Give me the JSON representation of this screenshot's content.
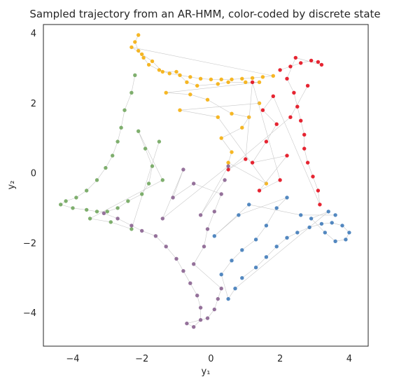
{
  "chart_data": {
    "type": "scatter",
    "title": "Sampled trajectory from an AR-HMM, color-coded by discrete state",
    "xlabel": "y₁",
    "ylabel": "y₂",
    "xlim": [
      -4.85,
      4.55
    ],
    "ylim": [
      -4.95,
      4.25
    ],
    "xticks": [
      -4,
      -2,
      0,
      2,
      4
    ],
    "yticks": [
      -4,
      -2,
      0,
      2,
      4
    ],
    "xtick_labels": [
      "−4",
      "−2",
      "0",
      "2",
      "4"
    ],
    "ytick_labels": [
      "−4",
      "−2",
      "0",
      "2",
      "4"
    ],
    "grid": false,
    "legend": "none",
    "trajectory_line_color": "#bbbbbb",
    "series": [
      {
        "color": "#f6ac00",
        "points": [
          [
            -2.1,
            3.95
          ],
          [
            -2.2,
            3.75
          ],
          [
            -2.1,
            3.5
          ],
          [
            -1.95,
            3.3
          ],
          [
            -1.8,
            3.1
          ],
          [
            -1.5,
            2.95
          ],
          [
            -1.2,
            2.85
          ],
          [
            -0.9,
            2.8
          ],
          [
            -0.6,
            2.75
          ],
          [
            -0.3,
            2.7
          ],
          [
            0,
            2.68
          ],
          [
            0.3,
            2.68
          ],
          [
            0.6,
            2.68
          ],
          [
            0.9,
            2.7
          ],
          [
            1.2,
            2.72
          ],
          [
            1.5,
            2.75
          ],
          [
            1.8,
            2.78
          ],
          [
            -2.3,
            3.6
          ],
          [
            -2.0,
            3.4
          ],
          [
            -1.7,
            3.2
          ],
          [
            -1.4,
            2.9
          ],
          [
            -1.0,
            2.9
          ],
          [
            -0.7,
            2.6
          ],
          [
            -0.4,
            2.5
          ],
          [
            0.2,
            2.55
          ],
          [
            0.5,
            2.6
          ],
          [
            1.0,
            2.6
          ],
          [
            1.4,
            2.6
          ],
          [
            -1.3,
            2.3
          ],
          [
            -0.6,
            2.25
          ],
          [
            -0.1,
            2.1
          ],
          [
            0.6,
            1.7
          ],
          [
            1.1,
            1.6
          ],
          [
            0.9,
            1.3
          ],
          [
            0.3,
            1.0
          ],
          [
            0.6,
            0.6
          ],
          [
            0.5,
            0.3
          ],
          [
            1.6,
            -0.3
          ],
          [
            0.2,
            1.6
          ],
          [
            -0.9,
            1.8
          ],
          [
            1.4,
            2.0
          ]
        ]
      },
      {
        "color": "#e3000f",
        "points": [
          [
            2.0,
            2.95
          ],
          [
            2.3,
            3.05
          ],
          [
            2.6,
            3.15
          ],
          [
            2.9,
            3.22
          ],
          [
            3.1,
            3.18
          ],
          [
            3.2,
            3.1
          ],
          [
            2.45,
            3.3
          ],
          [
            2.2,
            2.7
          ],
          [
            2.4,
            2.3
          ],
          [
            2.5,
            1.9
          ],
          [
            2.6,
            1.5
          ],
          [
            2.7,
            1.1
          ],
          [
            2.7,
            0.7
          ],
          [
            2.8,
            0.3
          ],
          [
            2.95,
            -0.1
          ],
          [
            3.1,
            -0.5
          ],
          [
            3.15,
            -0.9
          ],
          [
            1.8,
            2.2
          ],
          [
            1.5,
            1.8
          ],
          [
            1.9,
            1.4
          ],
          [
            1.6,
            0.9
          ],
          [
            1.2,
            0.3
          ],
          [
            2.2,
            0.5
          ],
          [
            1.4,
            -0.5
          ],
          [
            2.0,
            -0.2
          ],
          [
            1.2,
            2.6
          ],
          [
            1.0,
            0.4
          ],
          [
            0.5,
            0.1
          ],
          [
            2.3,
            1.6
          ],
          [
            2.8,
            2.5
          ]
        ]
      },
      {
        "color": "#6aa256",
        "points": [
          [
            -2.2,
            2.8
          ],
          [
            -2.3,
            2.3
          ],
          [
            -2.5,
            1.8
          ],
          [
            -2.6,
            1.3
          ],
          [
            -2.7,
            0.9
          ],
          [
            -2.85,
            0.5
          ],
          [
            -3.05,
            0.15
          ],
          [
            -3.3,
            -0.2
          ],
          [
            -3.6,
            -0.5
          ],
          [
            -3.9,
            -0.7
          ],
          [
            -4.2,
            -0.8
          ],
          [
            -4.35,
            -0.9
          ],
          [
            -4.0,
            -1.0
          ],
          [
            -3.6,
            -1.05
          ],
          [
            -3.3,
            -1.1
          ],
          [
            -3.0,
            -1.1
          ],
          [
            -2.7,
            -1.0
          ],
          [
            -2.4,
            -0.8
          ],
          [
            -2.0,
            -0.6
          ],
          [
            -1.8,
            -0.3
          ],
          [
            -1.7,
            0.2
          ],
          [
            -1.9,
            0.7
          ],
          [
            -2.1,
            1.2
          ],
          [
            -1.4,
            -0.2
          ],
          [
            -3.5,
            -1.3
          ],
          [
            -2.9,
            -1.4
          ],
          [
            -2.3,
            -1.6
          ],
          [
            -1.5,
            0.9
          ]
        ]
      },
      {
        "color": "#845b8b",
        "points": [
          [
            -3.1,
            -1.15
          ],
          [
            -2.7,
            -1.3
          ],
          [
            -2.3,
            -1.5
          ],
          [
            -2.0,
            -1.65
          ],
          [
            -1.6,
            -1.8
          ],
          [
            -1.3,
            -2.1
          ],
          [
            -1.0,
            -2.45
          ],
          [
            -0.8,
            -2.8
          ],
          [
            -0.6,
            -3.15
          ],
          [
            -0.4,
            -3.5
          ],
          [
            -0.3,
            -3.85
          ],
          [
            -0.3,
            -4.2
          ],
          [
            -0.5,
            -4.4
          ],
          [
            -0.7,
            -4.3
          ],
          [
            -0.1,
            -4.15
          ],
          [
            0.1,
            -3.9
          ],
          [
            0.2,
            -3.6
          ],
          [
            0.3,
            -3.3
          ],
          [
            -0.5,
            -2.6
          ],
          [
            -0.2,
            -2.1
          ],
          [
            -0.1,
            -1.6
          ],
          [
            0.1,
            -1.1
          ],
          [
            0.3,
            -0.6
          ],
          [
            -0.5,
            -0.3
          ],
          [
            -1.1,
            -0.7
          ],
          [
            -0.8,
            0.1
          ],
          [
            -1.4,
            -1.3
          ],
          [
            0.5,
            0.2
          ],
          [
            -0.3,
            -1.2
          ],
          [
            0.4,
            -0.2
          ]
        ]
      },
      {
        "color": "#3674b6",
        "points": [
          [
            0.9,
            -3.0
          ],
          [
            1.3,
            -2.7
          ],
          [
            1.6,
            -2.4
          ],
          [
            1.9,
            -2.1
          ],
          [
            2.2,
            -1.85
          ],
          [
            2.5,
            -1.7
          ],
          [
            2.85,
            -1.55
          ],
          [
            3.2,
            -1.45
          ],
          [
            3.5,
            -1.42
          ],
          [
            3.8,
            -1.5
          ],
          [
            4.0,
            -1.7
          ],
          [
            3.9,
            -1.9
          ],
          [
            3.6,
            -1.95
          ],
          [
            3.3,
            -1.7
          ],
          [
            2.9,
            -1.3
          ],
          [
            3.4,
            -1.1
          ],
          [
            0.7,
            -3.3
          ],
          [
            0.5,
            -3.6
          ],
          [
            0.3,
            -2.9
          ],
          [
            0.6,
            -2.5
          ],
          [
            0.9,
            -2.2
          ],
          [
            1.3,
            -1.9
          ],
          [
            1.6,
            -1.5
          ],
          [
            1.9,
            -1.0
          ],
          [
            2.2,
            -0.7
          ],
          [
            0.8,
            -1.2
          ],
          [
            0.1,
            -1.8
          ],
          [
            1.1,
            -0.9
          ],
          [
            2.6,
            -1.2
          ],
          [
            3.6,
            -1.2
          ]
        ]
      }
    ]
  }
}
